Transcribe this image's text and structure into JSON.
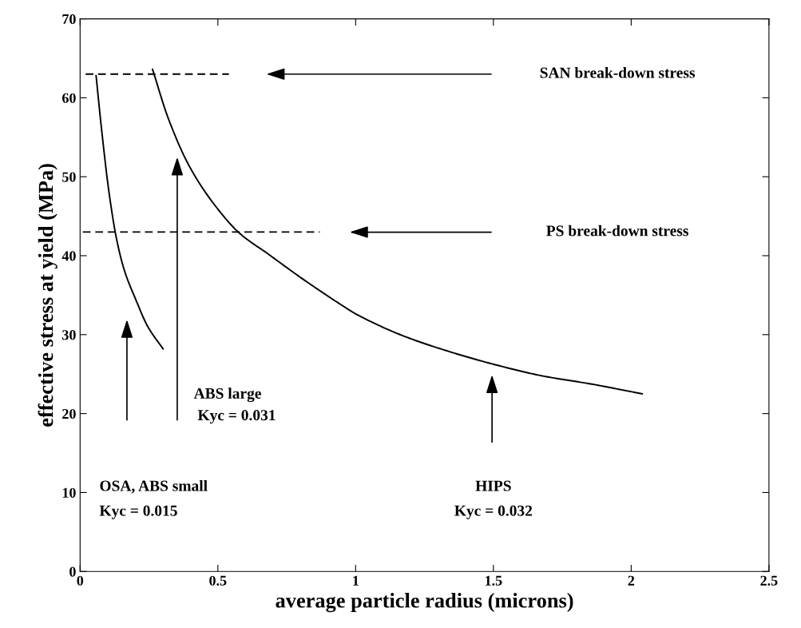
{
  "chart_data": {
    "type": "line",
    "xlabel": "average particle radius (microns)",
    "ylabel": "effective stress at yield (MPa)",
    "xlim": [
      0,
      2.5
    ],
    "xticks": [
      0,
      0.5,
      1,
      1.5,
      2,
      2.5
    ],
    "ylim": [
      0,
      70
    ],
    "yticks": [
      0,
      10,
      20,
      30,
      40,
      50,
      60,
      70
    ],
    "line_style": "solid",
    "marker": "none",
    "grid": false,
    "series": [
      {
        "color": "#000000",
        "x": [
          0.058,
          0.077,
          0.105,
          0.133,
          0.162,
          0.199,
          0.246,
          0.301
        ],
        "values": [
          62.8,
          56.3,
          48.0,
          42.0,
          38.0,
          34.7,
          31.0,
          28.2
        ]
      },
      {
        "color": "#000000",
        "x": [
          0.263,
          0.321,
          0.397,
          0.491,
          0.58,
          0.679,
          0.81,
          0.951,
          1.007,
          1.176,
          1.345,
          1.495,
          1.674,
          1.862,
          2.04
        ],
        "values": [
          63.6,
          57.3,
          51.3,
          46.3,
          42.8,
          40.3,
          37.0,
          33.7,
          32.5,
          29.8,
          27.8,
          26.3,
          24.8,
          23.7,
          22.5
        ]
      },
      {
        "color": "#000000",
        "line_style": "dashed",
        "x": [
          0.02,
          0.54
        ],
        "values": [
          63,
          63
        ]
      },
      {
        "color": "#000000",
        "line_style": "dashed",
        "x": [
          0.01,
          0.87
        ],
        "values": [
          43,
          43
        ]
      }
    ],
    "annotations": [
      "SAN break-down stress",
      "PS break-down stress",
      "ABS large\n Kyc = 0.031",
      "OSA, ABS small\nKyc = 0.015",
      "HIPS\nKyc = 0.032"
    ]
  }
}
